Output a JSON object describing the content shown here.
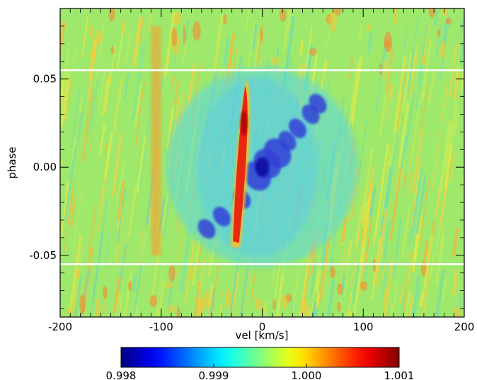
{
  "chart_data": {
    "type": "heatmap",
    "xlabel": "vel [km/s]",
    "ylabel": "phase",
    "xlim": [
      -200,
      200
    ],
    "ylim": [
      -0.085,
      0.09
    ],
    "x_ticks": [
      -200,
      -100,
      0,
      100,
      200
    ],
    "x_tick_labels": [
      "-200",
      "-100",
      "0",
      "100",
      "200"
    ],
    "y_ticks": [
      -0.05,
      0.0,
      0.05
    ],
    "y_tick_labels": [
      "-0.05",
      "0.00",
      "0.05"
    ],
    "reference_lines_phase": [
      -0.055,
      0.055
    ],
    "colorbar": {
      "range": [
        0.998,
        1.001
      ],
      "ticks": [
        0.998,
        0.999,
        1.0,
        1.001
      ],
      "tick_labels": [
        "0.998",
        "0.999",
        "1.000",
        "1.001"
      ],
      "colormap": "jet"
    },
    "features": [
      {
        "kind": "emission_streak",
        "value": 1.001,
        "vel_range": [
          -30,
          -10
        ],
        "phase_range": [
          -0.045,
          0.05
        ]
      },
      {
        "kind": "absorption_feature",
        "value": 0.998,
        "vel_range": [
          -70,
          55
        ],
        "phase_range": [
          -0.045,
          0.04
        ]
      }
    ]
  },
  "colors": {
    "background_field": "#9ee86c",
    "reference_line": "#ffffff"
  }
}
